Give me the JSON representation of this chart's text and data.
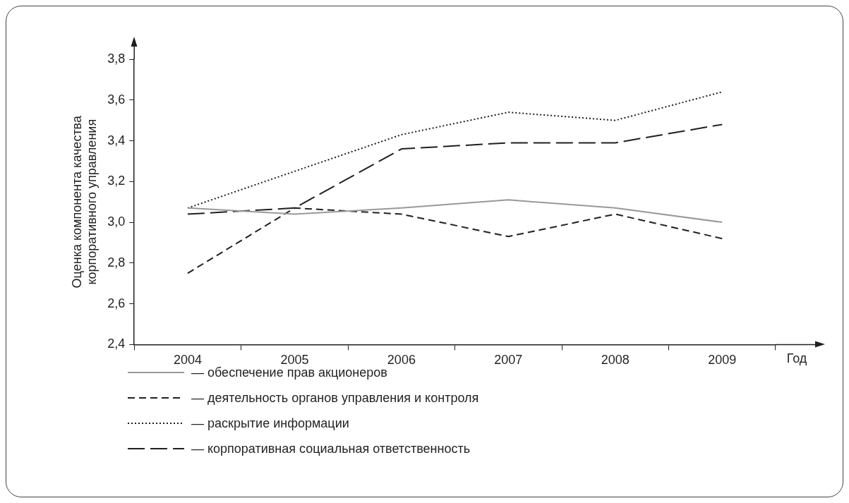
{
  "chart_data": {
    "type": "line",
    "xlabel": "Год",
    "ylabel": "Оценка компонента качества\nкорпоративного управления",
    "categories": [
      "2004",
      "2005",
      "2006",
      "2007",
      "2008",
      "2009"
    ],
    "series": [
      {
        "name": "— обеспечение прав акционеров",
        "color": "#999999",
        "line_style": "solid",
        "values": [
          3.07,
          3.04,
          3.07,
          3.11,
          3.07,
          3.0
        ]
      },
      {
        "name": "— деятельность органов управления и контроля",
        "color": "#231f20",
        "line_style": "dashed",
        "values": [
          2.75,
          3.07,
          3.04,
          2.93,
          3.04,
          2.92
        ]
      },
      {
        "name": "— раскрытие информации",
        "color": "#231f20",
        "line_style": "dotted",
        "values": [
          3.07,
          3.25,
          3.43,
          3.54,
          3.5,
          3.64
        ]
      },
      {
        "name": "— корпоративная социальная ответственность",
        "color": "#231f20",
        "line_style": "dashed",
        "values": [
          3.04,
          3.07,
          3.36,
          3.39,
          3.39,
          3.48
        ]
      }
    ],
    "ylim": [
      2.4,
      3.8
    ],
    "yticks": [
      {
        "value": 2.4,
        "label": "2,4"
      },
      {
        "value": 2.6,
        "label": "2,6"
      },
      {
        "value": 2.8,
        "label": "2,8"
      },
      {
        "value": 3.0,
        "label": "3,0"
      },
      {
        "value": 3.2,
        "label": "3,2"
      },
      {
        "value": 3.4,
        "label": "3,4"
      },
      {
        "value": 3.6,
        "label": "3,6"
      },
      {
        "value": 3.8,
        "label": "3,8"
      }
    ],
    "grid": false,
    "legend": "bottom",
    "marker": "none"
  }
}
